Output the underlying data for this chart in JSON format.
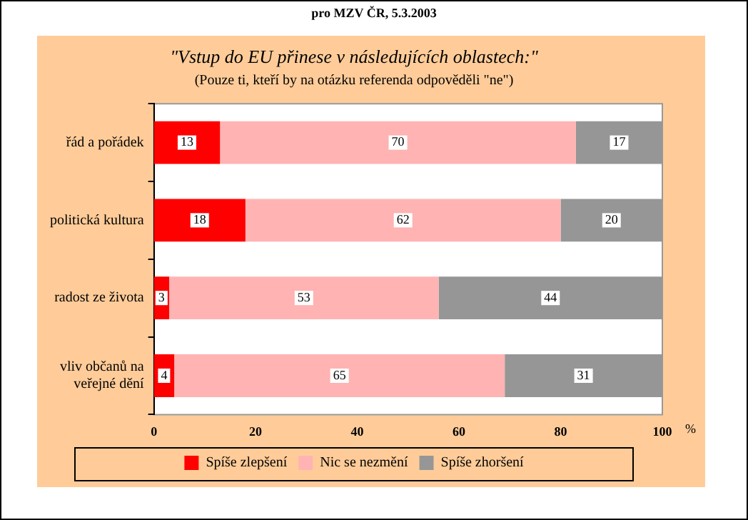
{
  "chart_data": {
    "type": "bar",
    "orientation": "horizontal",
    "stacked": true,
    "title": "\"Vstup do EU přinese v následujících oblastech:\"",
    "subtitle": "(Pouze ti, kteří by na otázku referenda odpověděli \"ne\")",
    "annotations": [
      "pro MZV ČR, 5.3.2003"
    ],
    "xlabel": "%",
    "categories": [
      "řád a pořádek",
      "politická kultura",
      "radost ze života",
      "vliv občanů na veřejné dění"
    ],
    "series": [
      {
        "name": "Spíše zlepšení",
        "color": "#ff0000",
        "values": [
          13,
          18,
          3,
          4
        ]
      },
      {
        "name": "Nic se nezmění",
        "color": "#ffb3b3",
        "values": [
          70,
          62,
          53,
          65
        ]
      },
      {
        "name": "Spíše zhoršení",
        "color": "#969696",
        "values": [
          17,
          20,
          44,
          31
        ]
      }
    ],
    "xlim": [
      0,
      100
    ],
    "xticks": [
      0,
      20,
      40,
      60,
      80,
      100
    ],
    "grid": false,
    "legend": "bottom",
    "data_labels": true
  }
}
